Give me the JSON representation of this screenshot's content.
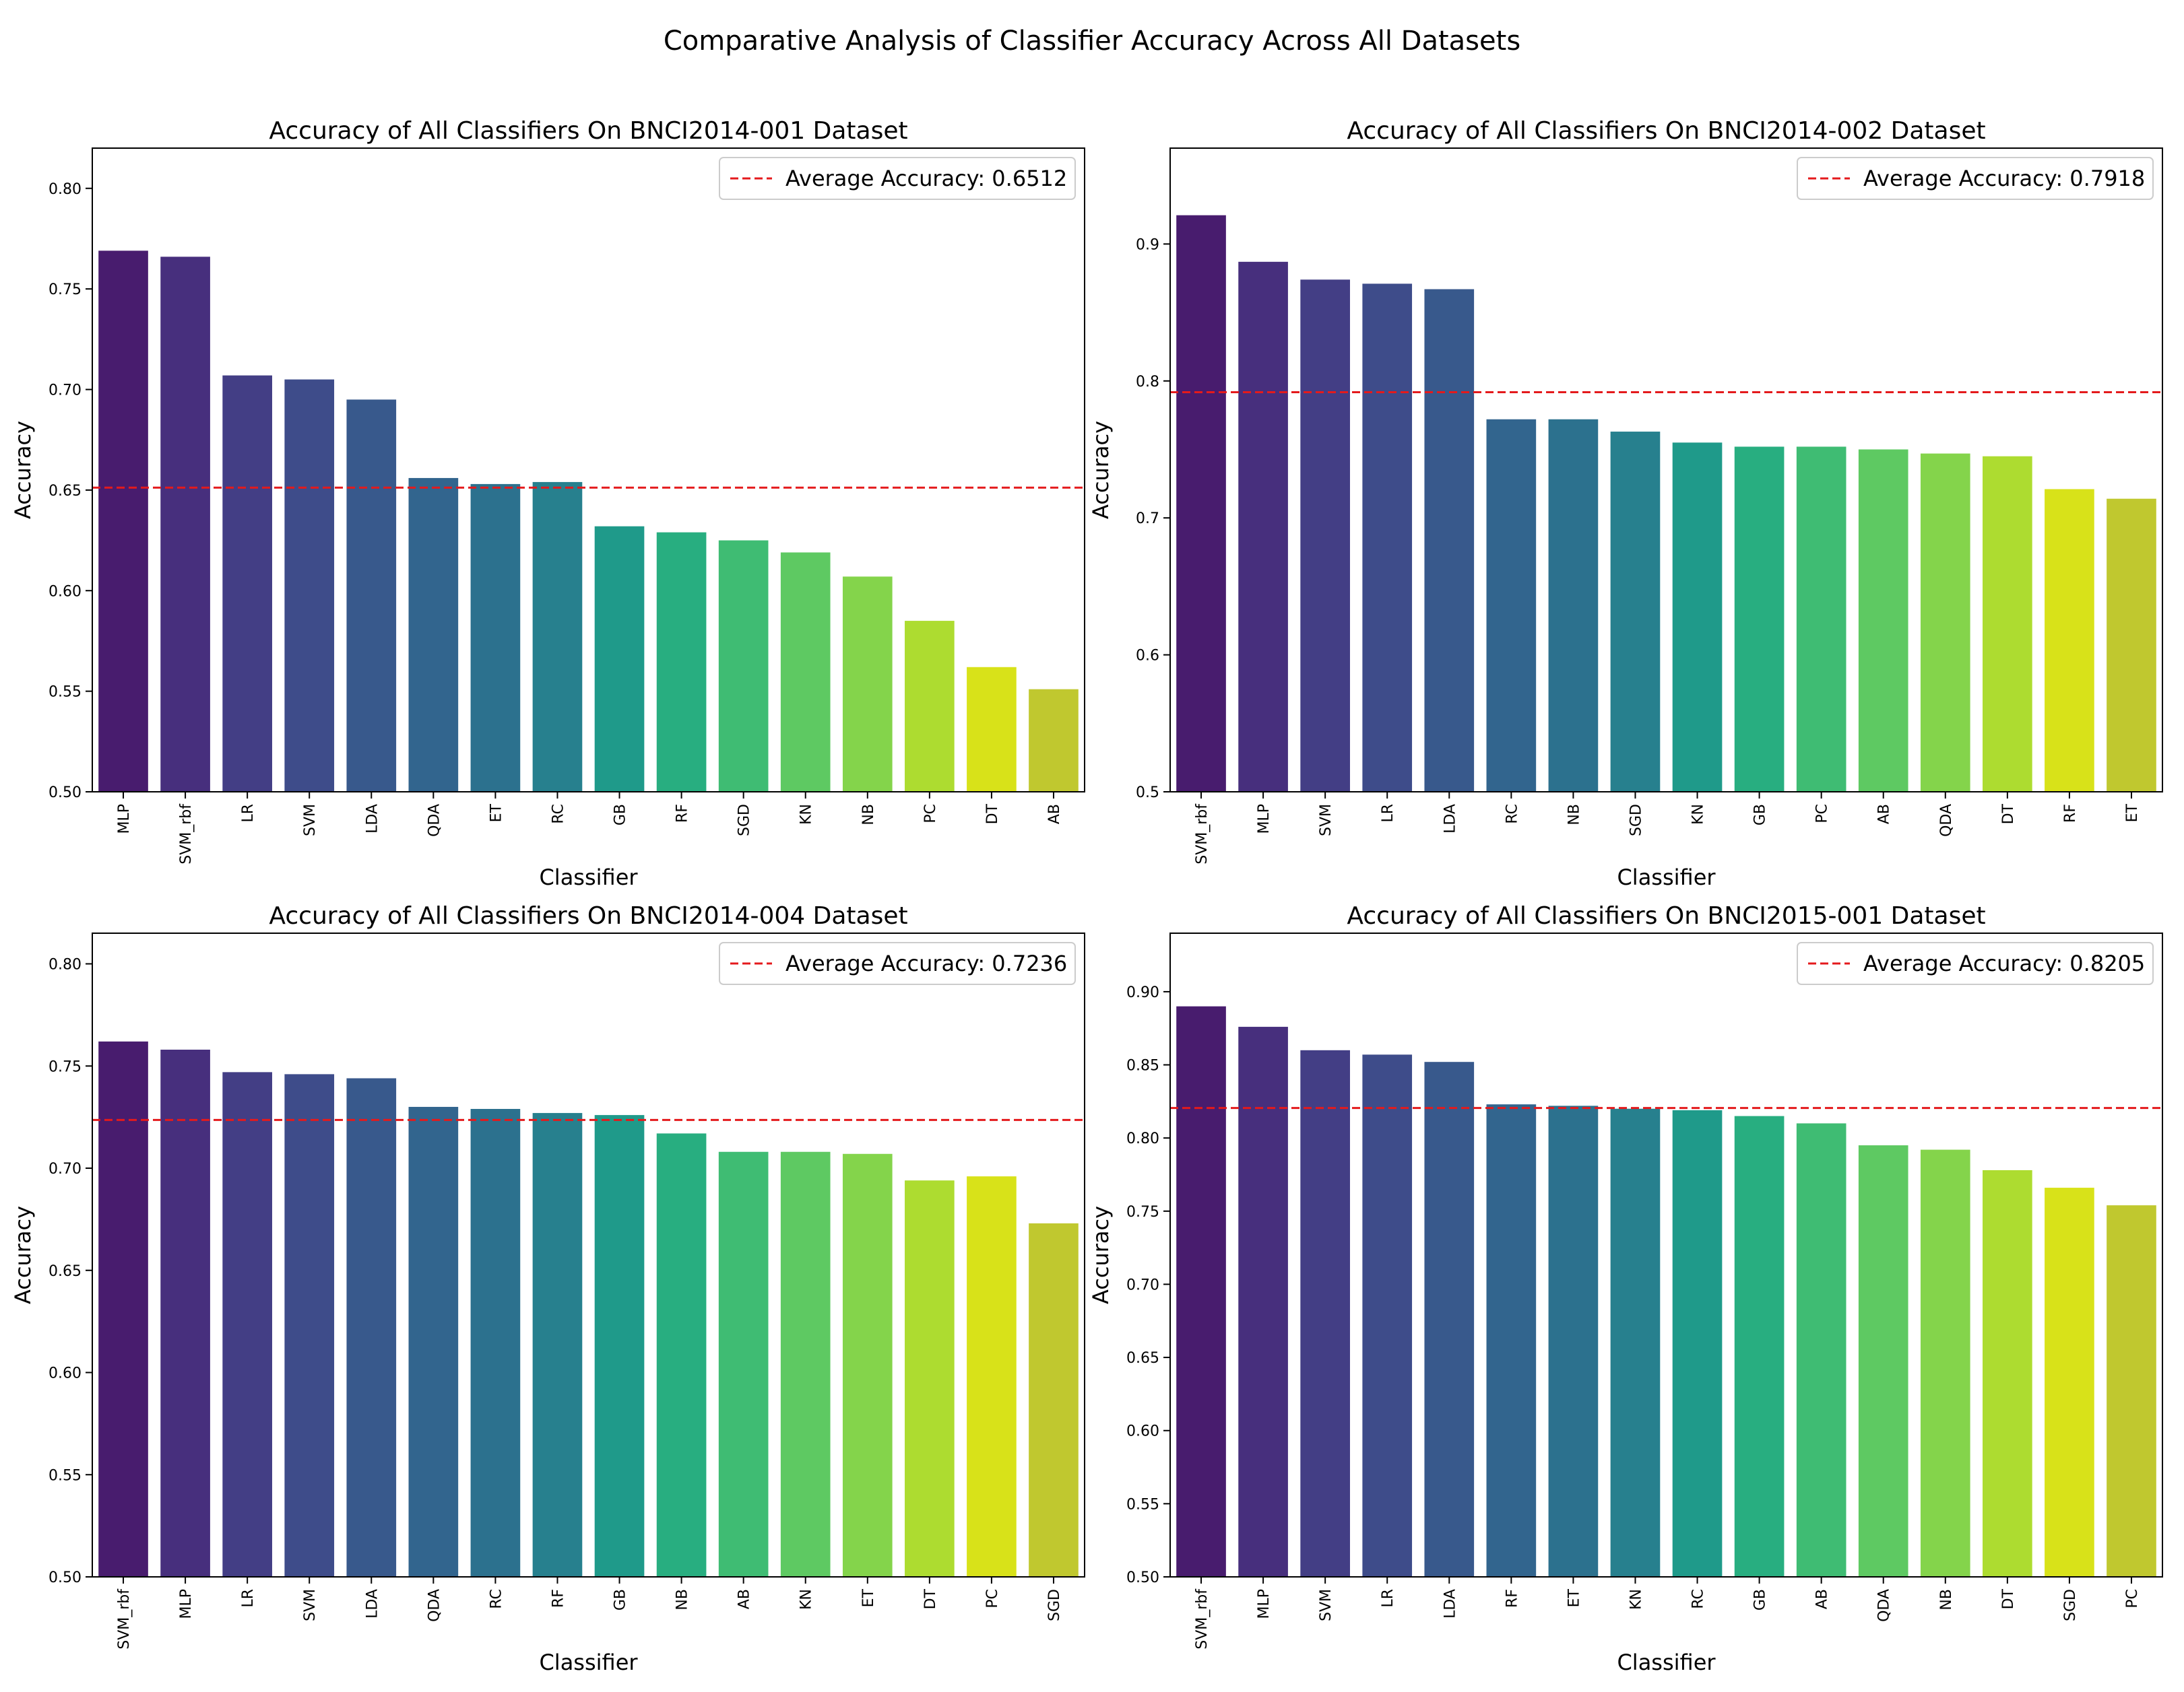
{
  "figure": {
    "suptitle": "Comparative Analysis of Classifier Accuracy Across All Datasets"
  },
  "palette": [
    "#481c6e",
    "#472f7d",
    "#433e85",
    "#3e4c8a",
    "#38598c",
    "#32658e",
    "#2c718e",
    "#27808e",
    "#228d8d",
    "#1f9a8a",
    "#28ae80",
    "#3fbc73",
    "#5ec962",
    "#84d44b",
    "#addc30",
    "#d8e219",
    "#c0c82f"
  ],
  "colors": {
    "average_line": "#e41a1c",
    "axes": "#000000",
    "background": "#ffffff"
  },
  "chart_data": [
    {
      "type": "bar",
      "title": "Accuracy of All Classifiers On BNCI2014-001 Dataset",
      "xlabel": "Classifier",
      "ylabel": "Accuracy",
      "ylim": [
        0.5,
        0.82
      ],
      "yticks": [
        0.5,
        0.55,
        0.6,
        0.65,
        0.7,
        0.75,
        0.8
      ],
      "ytick_labels": [
        "0.50",
        "0.55",
        "0.60",
        "0.65",
        "0.70",
        "0.75",
        "0.80"
      ],
      "categories": [
        "MLP",
        "SVM_rbf",
        "LR",
        "SVM",
        "LDA",
        "QDA",
        "ET",
        "RC",
        "GB",
        "RF",
        "SGD",
        "KN",
        "NB",
        "PC",
        "DT",
        "AB"
      ],
      "values": [
        0.769,
        0.766,
        0.707,
        0.705,
        0.695,
        0.656,
        0.653,
        0.654,
        0.632,
        0.629,
        0.625,
        0.619,
        0.607,
        0.585,
        0.562,
        0.551
      ],
      "average": 0.6512,
      "legend": "Average Accuracy: 0.6512",
      "legend_position": "upper right",
      "grid": false
    },
    {
      "type": "bar",
      "title": "Accuracy of All Classifiers On BNCI2014-002 Dataset",
      "xlabel": "Classifier",
      "ylabel": "Accuracy",
      "ylim": [
        0.5,
        0.97
      ],
      "yticks": [
        0.5,
        0.6,
        0.7,
        0.8,
        0.9
      ],
      "ytick_labels": [
        "0.5",
        "0.6",
        "0.7",
        "0.8",
        "0.9"
      ],
      "categories": [
        "SVM_rbf",
        "MLP",
        "SVM",
        "LR",
        "LDA",
        "RC",
        "NB",
        "SGD",
        "KN",
        "GB",
        "PC",
        "AB",
        "QDA",
        "DT",
        "RF",
        "ET"
      ],
      "values": [
        0.921,
        0.887,
        0.874,
        0.871,
        0.867,
        0.772,
        0.772,
        0.763,
        0.755,
        0.752,
        0.752,
        0.75,
        0.747,
        0.745,
        0.721,
        0.714
      ],
      "average": 0.7918,
      "legend": "Average Accuracy: 0.7918",
      "legend_position": "upper right",
      "grid": false
    },
    {
      "type": "bar",
      "title": "Accuracy of All Classifiers On BNCI2014-004 Dataset",
      "xlabel": "Classifier",
      "ylabel": "Accuracy",
      "ylim": [
        0.5,
        0.815
      ],
      "yticks": [
        0.5,
        0.55,
        0.6,
        0.65,
        0.7,
        0.75,
        0.8
      ],
      "ytick_labels": [
        "0.50",
        "0.55",
        "0.60",
        "0.65",
        "0.70",
        "0.75",
        "0.80"
      ],
      "categories": [
        "SVM_rbf",
        "MLP",
        "LR",
        "SVM",
        "LDA",
        "QDA",
        "RC",
        "RF",
        "GB",
        "NB",
        "AB",
        "KN",
        "ET",
        "DT",
        "PC",
        "SGD"
      ],
      "values": [
        0.762,
        0.758,
        0.747,
        0.746,
        0.744,
        0.73,
        0.729,
        0.727,
        0.726,
        0.717,
        0.708,
        0.708,
        0.707,
        0.694,
        0.696,
        0.673
      ],
      "average": 0.7236,
      "legend": "Average Accuracy: 0.7236",
      "legend_position": "upper right",
      "grid": false
    },
    {
      "type": "bar",
      "title": "Accuracy of All Classifiers On BNCI2015-001 Dataset",
      "xlabel": "Classifier",
      "ylabel": "Accuracy",
      "ylim": [
        0.5,
        0.94
      ],
      "yticks": [
        0.5,
        0.55,
        0.6,
        0.65,
        0.7,
        0.75,
        0.8,
        0.85,
        0.9
      ],
      "ytick_labels": [
        "0.50",
        "0.55",
        "0.60",
        "0.65",
        "0.70",
        "0.75",
        "0.80",
        "0.85",
        "0.90"
      ],
      "categories": [
        "SVM_rbf",
        "MLP",
        "SVM",
        "LR",
        "LDA",
        "RF",
        "ET",
        "KN",
        "RC",
        "GB",
        "AB",
        "QDA",
        "NB",
        "DT",
        "SGD",
        "PC"
      ],
      "values": [
        0.89,
        0.876,
        0.86,
        0.857,
        0.852,
        0.823,
        0.822,
        0.82,
        0.819,
        0.815,
        0.81,
        0.795,
        0.792,
        0.778,
        0.766,
        0.754
      ],
      "average": 0.8205,
      "legend": "Average Accuracy: 0.8205",
      "legend_position": "upper right",
      "grid": false
    }
  ]
}
